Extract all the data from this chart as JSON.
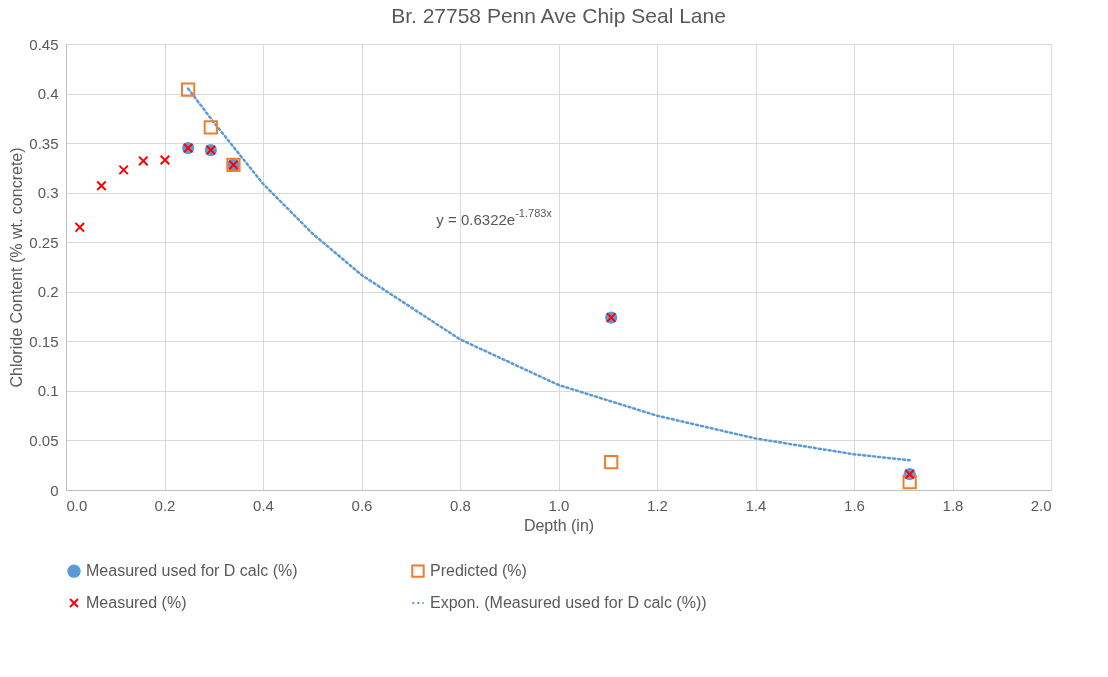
{
  "chart_data": {
    "type": "scatter",
    "title": "Br. 27758 Penn Ave Chip Seal Lane",
    "xlabel": "Depth (in)",
    "ylabel": "Chloride Content (% wt. concrete)",
    "xlim": [
      0,
      2
    ],
    "xticks": [
      {
        "value": 0,
        "label": "0.0"
      },
      {
        "value": 0.2,
        "label": "0.2"
      },
      {
        "value": 0.4,
        "label": "0.4"
      },
      {
        "value": 0.6,
        "label": "0.6"
      },
      {
        "value": 0.8,
        "label": "0.8"
      },
      {
        "value": 1,
        "label": "1.0"
      },
      {
        "value": 1.2,
        "label": "1.2"
      },
      {
        "value": 1.4,
        "label": "1.4"
      },
      {
        "value": 1.6,
        "label": "1.6"
      },
      {
        "value": 1.8,
        "label": "1.8"
      },
      {
        "value": 2,
        "label": "2.0"
      }
    ],
    "ylim": [
      0,
      0.45
    ],
    "yticks": [
      0,
      0.05,
      0.1,
      0.15,
      0.2,
      0.25,
      0.3,
      0.35,
      0.4,
      0.45
    ],
    "grid": true,
    "legend": "bottom",
    "series": [
      {
        "name": "Measured used for D calc (%)",
        "marker": "circle",
        "color": "#5b9bd5",
        "x": [
          0.248,
          0.294,
          0.34,
          1.107,
          1.713
        ],
        "values": [
          0.345,
          0.343,
          0.328,
          0.174,
          0.016
        ]
      },
      {
        "name": "Predicted (%)",
        "marker": "square",
        "color": "#ed7d31",
        "x": [
          0.248,
          0.294,
          0.34,
          1.107,
          1.713
        ],
        "values": [
          0.404,
          0.366,
          0.328,
          0.028,
          0.008
        ]
      },
      {
        "name": "Measured (%)",
        "marker": "cross",
        "color": "#ff0000",
        "x": [
          0.028,
          0.072,
          0.117,
          0.157,
          0.201,
          0.248,
          0.294,
          0.34,
          1.107,
          1.713
        ],
        "values": [
          0.265,
          0.307,
          0.323,
          0.332,
          0.333,
          0.345,
          0.343,
          0.328,
          0.174,
          0.016
        ]
      },
      {
        "name": "Expon. (Measured used for D calc (%))",
        "type": "line",
        "line_style": "dotted",
        "color": "#5b9bd5",
        "x": [
          0.248,
          0.3,
          0.4,
          0.5,
          0.6,
          0.8,
          1.0,
          1.2,
          1.4,
          1.6,
          1.713
        ],
        "values": [
          0.405,
          0.371,
          0.309,
          0.259,
          0.217,
          0.152,
          0.106,
          0.075,
          0.052,
          0.036,
          0.03
        ]
      }
    ],
    "annotations": [
      "y = 0.6322e$^{-1.783x}$"
    ]
  }
}
